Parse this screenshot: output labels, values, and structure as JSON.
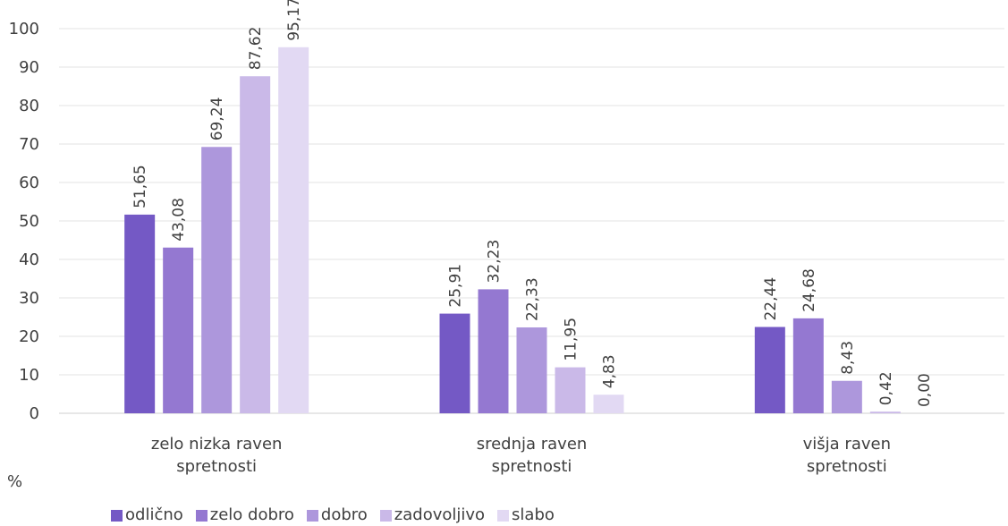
{
  "chart_data": {
    "type": "bar",
    "categories": [
      [
        "zelo nizka raven",
        "spretnosti"
      ],
      [
        "srednja raven",
        "spretnosti"
      ],
      [
        "višja raven",
        "spretnosti"
      ]
    ],
    "series": [
      {
        "name": "odlično",
        "color": "#7459c5",
        "values": [
          51.65,
          25.91,
          22.44
        ],
        "labels": [
          "51,65",
          "25,91",
          "22,44"
        ]
      },
      {
        "name": "zelo dobro",
        "color": "#9478d1",
        "values": [
          43.08,
          32.23,
          24.68
        ],
        "labels": [
          "43,08",
          "32,23",
          "24,68"
        ]
      },
      {
        "name": "dobro",
        "color": "#ad97dc",
        "values": [
          69.24,
          22.33,
          8.43
        ],
        "labels": [
          "69,24",
          "22,33",
          "8,43"
        ]
      },
      {
        "name": "zadovoljivo",
        "color": "#cab9e8",
        "values": [
          87.62,
          11.95,
          0.42
        ],
        "labels": [
          "87,62",
          "11,95",
          "0,42"
        ]
      },
      {
        "name": "slabo",
        "color": "#e2d9f3",
        "values": [
          95.17,
          4.83,
          0.0
        ],
        "labels": [
          "95,17",
          "4,83",
          "0,00"
        ]
      }
    ],
    "ylim": [
      0,
      100
    ],
    "yticks": [
      0,
      10,
      20,
      30,
      40,
      50,
      60,
      70,
      80,
      90,
      100
    ],
    "ylabel": "%",
    "grid": true,
    "legend_position": "bottom"
  }
}
